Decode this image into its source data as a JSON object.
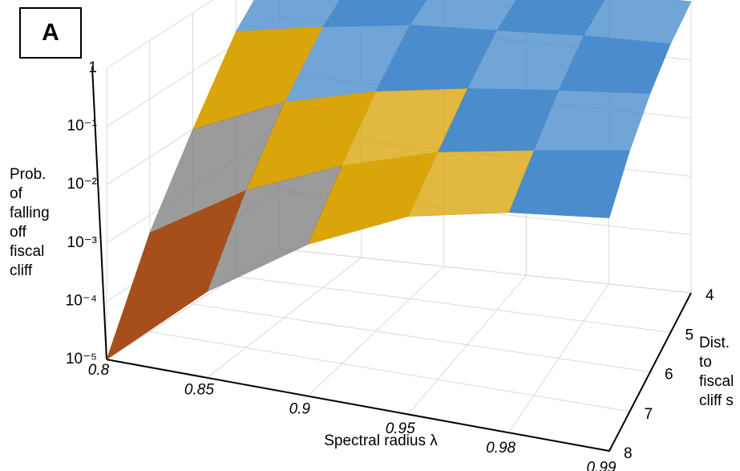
{
  "chart_data": {
    "type": "surface",
    "panel_label": "A",
    "z_title": [
      "Prob.",
      "of",
      "falling",
      "off",
      "fiscal",
      "cliff"
    ],
    "x_title": "Spectral radius λ",
    "y_title": [
      "Dist.",
      "to",
      "fiscal",
      "cliff s"
    ],
    "x_categories": [
      "0.8",
      "0.85",
      "0.9",
      "0.95",
      "0.98",
      "0.99"
    ],
    "y_categories": [
      "4",
      "5",
      "6",
      "7",
      "8"
    ],
    "zlim": [
      1e-05,
      1
    ],
    "log_scale": true,
    "zticks": [
      {
        "value": 1e-05,
        "label": "10⁻⁵"
      },
      {
        "value": 0.0001,
        "label": "10⁻⁴"
      },
      {
        "value": 0.001,
        "label": "10⁻³"
      },
      {
        "value": 0.01,
        "label": "10⁻²"
      },
      {
        "value": 0.1,
        "label": "10⁻¹"
      },
      1
    ],
    "band_colors": [
      "#1f3d73",
      "#a64f1a",
      "#7f7f7f",
      "#d9a50a",
      "#4a8ccc"
    ],
    "values": [
      [
        1,
        0.16,
        0.01,
        0.0005,
        1e-05
      ],
      [
        1,
        0.3,
        0.05,
        0.005,
        0.0003
      ],
      [
        1,
        0.5,
        0.13,
        0.025,
        0.004
      ],
      [
        1,
        0.63,
        0.25,
        0.08,
        0.025
      ],
      [
        1,
        0.8,
        0.4,
        0.16,
        0.06
      ],
      [
        1,
        0.9,
        0.6,
        0.3,
        0.1
      ]
    ],
    "grid": true
  }
}
